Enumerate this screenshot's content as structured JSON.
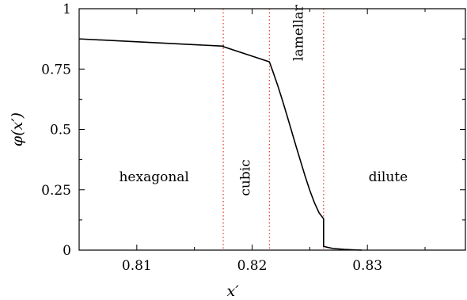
{
  "chart_data": {
    "type": "line",
    "title": "",
    "xlabel": "x′",
    "ylabel": "φ(x′)",
    "xlim": [
      0.805,
      0.8385
    ],
    "ylim": [
      0,
      1
    ],
    "x_ticks": [
      {
        "value": 0.81,
        "label": "0.81"
      },
      {
        "value": 0.82,
        "label": "0.82"
      },
      {
        "value": 0.83,
        "label": "0.83"
      }
    ],
    "y_ticks": [
      {
        "value": 0,
        "label": "0"
      },
      {
        "value": 0.25,
        "label": "0.25"
      },
      {
        "value": 0.5,
        "label": "0.5"
      },
      {
        "value": 0.75,
        "label": "0.75"
      },
      {
        "value": 1,
        "label": "1"
      }
    ],
    "series": [
      {
        "color": "#000000",
        "x": [
          0.805,
          0.8175,
          0.8175,
          0.8215,
          0.8218,
          0.8222,
          0.8226,
          0.823,
          0.8234,
          0.8238,
          0.8242,
          0.8246,
          0.825,
          0.8254,
          0.8258,
          0.8262,
          0.8262,
          0.8265,
          0.827,
          0.828,
          0.829,
          0.8295
        ],
        "y": [
          0.875,
          0.845,
          0.843,
          0.78,
          0.74,
          0.685,
          0.625,
          0.562,
          0.497,
          0.432,
          0.369,
          0.306,
          0.248,
          0.197,
          0.155,
          0.13,
          0.016,
          0.012,
          0.007,
          0.003,
          0.0008,
          0.0
        ]
      }
    ],
    "phase_boundaries": {
      "x": [
        0.8175,
        0.8215,
        0.8262
      ],
      "color": "#e8473a",
      "style": "dotted"
    },
    "regions": [
      {
        "label": "hexagonal",
        "x": 0.8115,
        "y": 0.3,
        "rotation": 0
      },
      {
        "label": "cubic",
        "x": 0.8195,
        "y": 0.3,
        "rotation": -90
      },
      {
        "label": "lamellar",
        "x": 0.8241,
        "y": 0.9,
        "rotation": -90
      },
      {
        "label": "dilute",
        "x": 0.8318,
        "y": 0.3,
        "rotation": 0
      }
    ],
    "grid": false,
    "legend": "none"
  }
}
